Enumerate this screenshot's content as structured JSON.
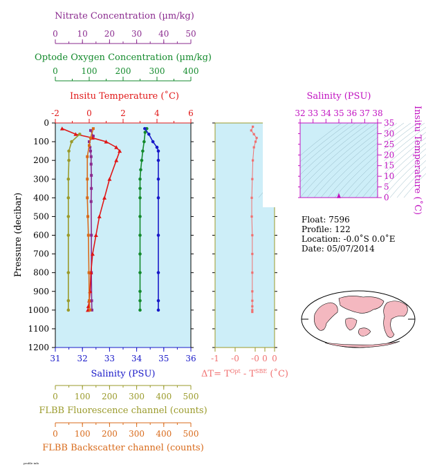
{
  "chart_data": [
    {
      "type": "line",
      "panel": "profile",
      "ylabel": "Pressure (decibar)",
      "ylim": [
        1200,
        0
      ],
      "yticks": [
        "0",
        "100",
        "200",
        "300",
        "400",
        "500",
        "600",
        "700",
        "800",
        "900",
        "1000",
        "1100",
        "1200"
      ],
      "axes": {
        "nitrate": {
          "label": "Nitrate Concentration (µm/kg)",
          "range": [
            0,
            50
          ],
          "ticks": [
            "0",
            "10",
            "20",
            "30",
            "40",
            "50"
          ],
          "color": "#8a2a8e"
        },
        "oxygen": {
          "label": "Optode Oxygen Concentration (µm/kg)",
          "range": [
            0,
            400
          ],
          "ticks": [
            "0",
            "100",
            "200",
            "300",
            "400"
          ],
          "color": "#138a2c"
        },
        "temperature": {
          "label": "Insitu Temperature (˚C)",
          "range": [
            -2,
            6
          ],
          "ticks": [
            "-2",
            "0",
            "2",
            "4",
            "6"
          ],
          "color": "#e01616"
        },
        "salinity": {
          "label": "Salinity (PSU)",
          "range": [
            31,
            36
          ],
          "ticks": [
            "31",
            "32",
            "33",
            "34",
            "35",
            "36"
          ],
          "color": "#1818c8"
        },
        "fluorescence": {
          "label": "FLBB Fluorescence channel (counts)",
          "range": [
            0,
            500
          ],
          "ticks": [
            "0",
            "100",
            "200",
            "300",
            "400",
            "500"
          ],
          "color": "#9a9a2a"
        },
        "backscatter": {
          "label": "FLBB Backscatter channel (counts)",
          "range": [
            0,
            500
          ],
          "ticks": [
            "0",
            "100",
            "200",
            "300",
            "400",
            "500"
          ],
          "color": "#d86a1a"
        }
      },
      "series": [
        {
          "name": "Nitrate",
          "axis": "nitrate",
          "x": [
            13,
            14,
            12.5,
            12.8,
            13,
            13.2,
            13.2,
            13.3,
            13.3,
            13.2,
            13.3,
            13.3,
            13.4,
            13.5
          ],
          "y": [
            40,
            70,
            100,
            130,
            150,
            180,
            220,
            280,
            350,
            420,
            600,
            800,
            950,
            1000
          ]
        },
        {
          "name": "Oxygen",
          "axis": "oxygen",
          "x": [
            270,
            265,
            262,
            258,
            255,
            252,
            250,
            250,
            250,
            250,
            250,
            250,
            250,
            250,
            250,
            250
          ],
          "y": [
            30,
            50,
            100,
            150,
            200,
            250,
            300,
            350,
            400,
            500,
            600,
            700,
            800,
            900,
            950,
            1000
          ]
        },
        {
          "name": "Temperature",
          "axis": "temperature",
          "x": [
            -1.6,
            -0.8,
            0.2,
            1.0,
            1.6,
            1.8,
            1.6,
            1.2,
            0.9,
            0.6,
            0.4,
            0.2,
            0.1,
            0.05,
            0.0,
            -0.05,
            -0.08
          ],
          "y": [
            30,
            60,
            80,
            100,
            130,
            150,
            200,
            300,
            400,
            500,
            600,
            700,
            800,
            900,
            950,
            980,
            1000
          ]
        },
        {
          "name": "Salinity",
          "axis": "salinity",
          "x": [
            34.3,
            34.45,
            34.6,
            34.75,
            34.8,
            34.8,
            34.8,
            34.8,
            34.8,
            34.8,
            34.8,
            34.8
          ],
          "y": [
            30,
            60,
            100,
            130,
            150,
            200,
            300,
            400,
            600,
            800,
            950,
            1000
          ]
        },
        {
          "name": "Fluorescence",
          "axis": "fluorescence",
          "x": [
            90,
            60,
            50,
            50,
            48,
            48,
            48,
            48,
            48,
            48,
            48
          ],
          "y": [
            60,
            100,
            150,
            200,
            300,
            400,
            500,
            600,
            800,
            950,
            1000
          ]
        },
        {
          "name": "Backscatter",
          "axis": "backscatter",
          "x": [
            140,
            130,
            125,
            118,
            118,
            118,
            120,
            122,
            124,
            125,
            128
          ],
          "y": [
            30,
            80,
            120,
            180,
            300,
            400,
            500,
            600,
            800,
            950,
            1000
          ]
        }
      ]
    },
    {
      "type": "scatter",
      "panel": "delta-t",
      "xlabel_main": "ΔT= T",
      "xlabel_sup1": "Opt",
      "xlabel_mid": " - T",
      "xlabel_sup2": "SBE",
      "xlabel_unit": " (˚C)",
      "xlim": [
        -1,
        0.1
      ],
      "xticks": [
        "-1",
        "-0",
        "-0",
        "0",
        "0"
      ],
      "ylim": [
        1200,
        0
      ],
      "color": "#f07070",
      "x": [
        -0.02,
        -0.05,
        0.0,
        0.05,
        0.03,
        0.0,
        -0.02,
        -0.03,
        -0.04,
        -0.04,
        -0.03,
        -0.03,
        -0.03,
        -0.03,
        -0.03,
        -0.03,
        -0.03,
        -0.03
      ],
      "y": [
        20,
        40,
        60,
        80,
        100,
        130,
        200,
        300,
        400,
        500,
        600,
        700,
        800,
        900,
        950,
        980,
        1000,
        1010
      ]
    },
    {
      "type": "line",
      "panel": "ts-diagram",
      "title": "Salinity (PSU)",
      "xticks": [
        "32",
        "33",
        "34",
        "35",
        "36",
        "37",
        "38"
      ],
      "xlim": [
        32,
        38
      ],
      "ylabel": "Insitu Temperature (˚C)",
      "yticks": [
        "0",
        "5",
        "10",
        "15",
        "20",
        "25",
        "30",
        "35"
      ],
      "ylim": [
        0,
        35
      ],
      "color": "#c010c0",
      "x": [
        34.9,
        35.0,
        35.1
      ],
      "y": [
        0,
        1.5,
        0
      ]
    }
  ],
  "info": {
    "float": "Float:  7596",
    "profile": "Profile:  122",
    "location": "Location:  -0.0˚S   0.0˚E",
    "date": "Date:  05/07/2014"
  },
  "footer_note": "profile info"
}
